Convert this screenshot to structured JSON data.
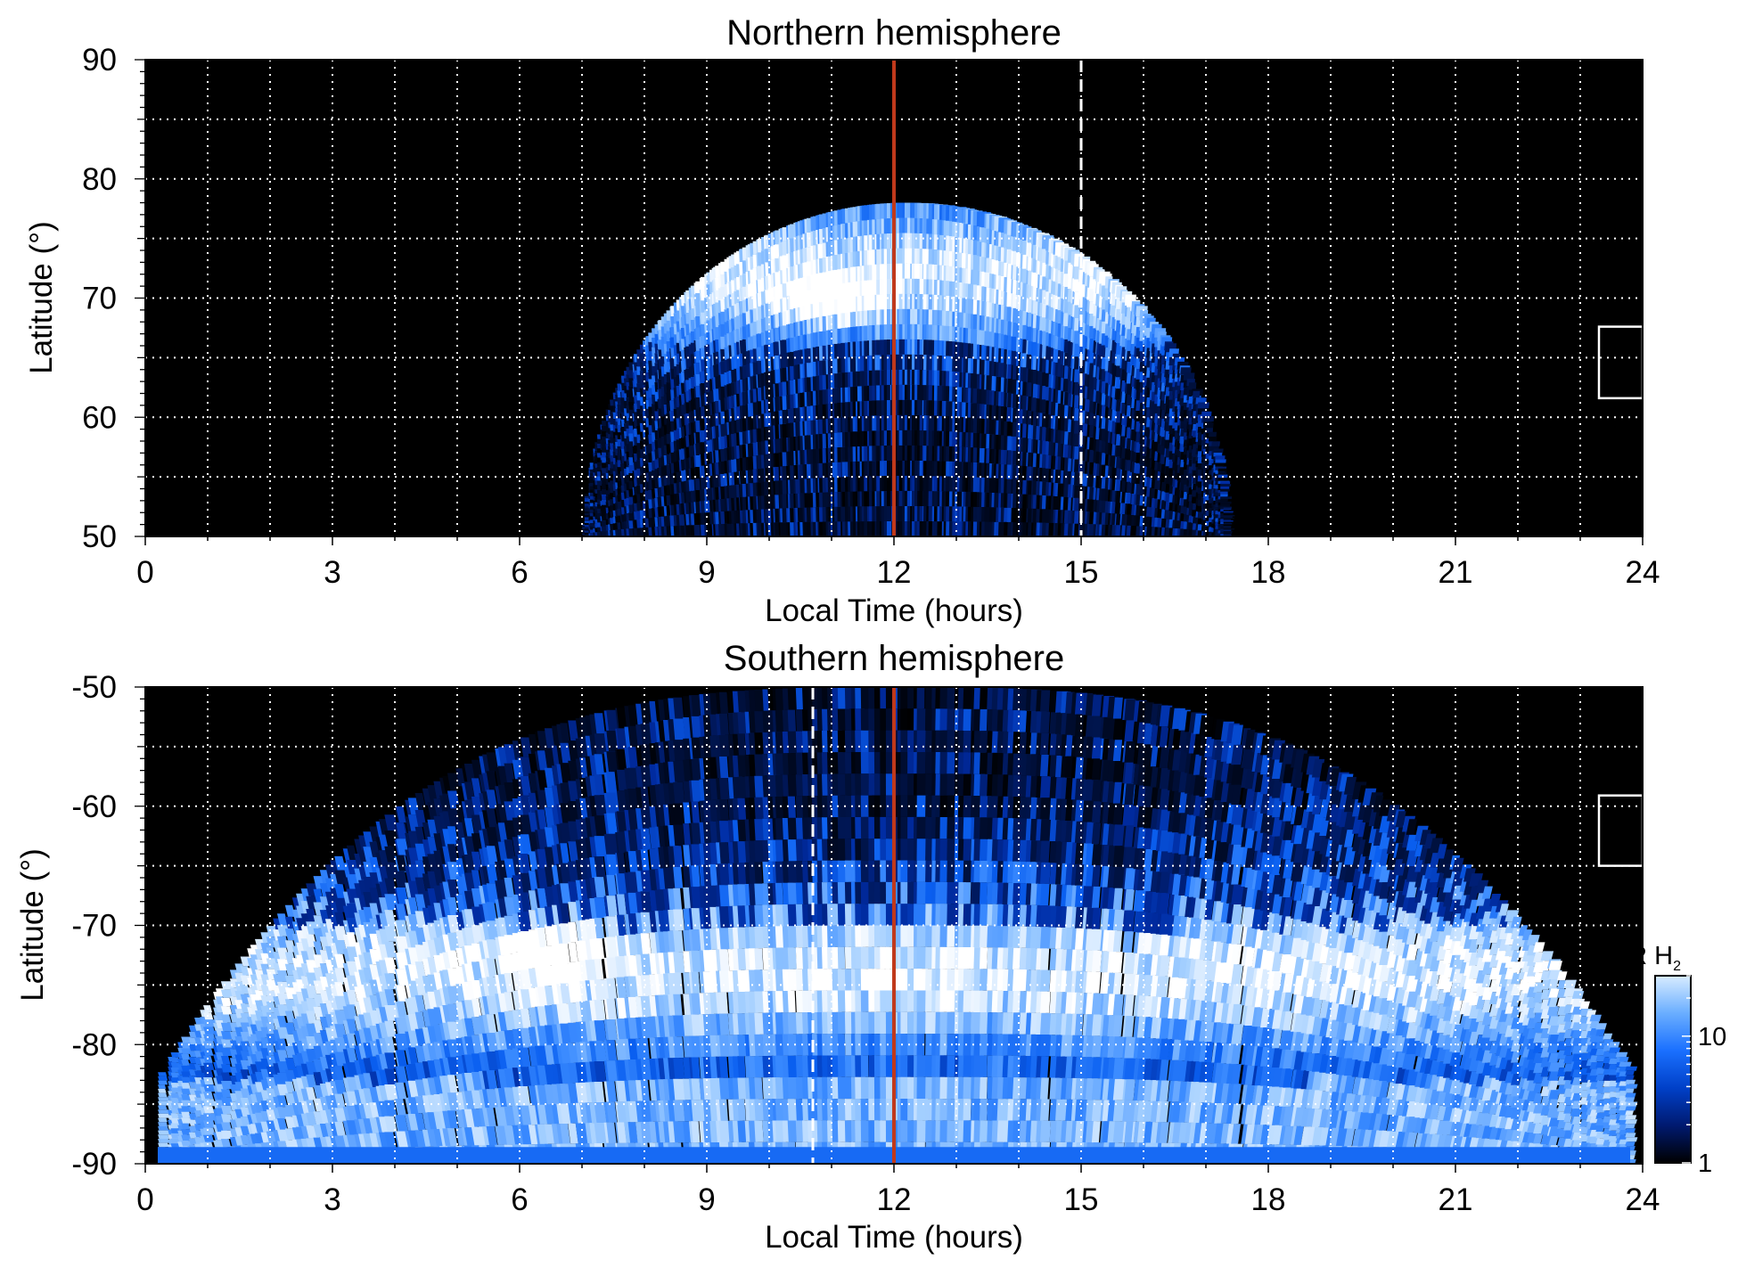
{
  "chart_data": [
    {
      "type": "heatmap",
      "title": "Northern hemisphere",
      "xlabel": "Local Time (hours)",
      "ylabel": "Latitude (°)",
      "xlim": [
        0,
        24
      ],
      "ylim": [
        50,
        90
      ],
      "x_ticks": [
        "0",
        "3",
        "6",
        "9",
        "12",
        "15",
        "18",
        "21",
        "24"
      ],
      "y_ticks": [
        "90",
        "80",
        "70",
        "60",
        "50"
      ],
      "grid": true,
      "background_color": "#000000",
      "colormap": [
        "#000000",
        "#002a9e",
        "#0a5ff0",
        "#3c8cff",
        "#9ccbff",
        "#ffffff"
      ],
      "coverage": {
        "lt_start": 7.0,
        "lt_end": 17.3,
        "lat_edge_noon": 78
      },
      "auroral_oval": {
        "lat_center": 72,
        "lat_width": 7,
        "brightest_lt": 11,
        "brightest_lat": 70
      },
      "noon_line": {
        "x": 12,
        "color": "#c0391b"
      },
      "dashed_line": {
        "x": 15,
        "color": "#ffffff"
      },
      "marker_box": {
        "x_range": [
          23.3,
          24
        ],
        "lat_range": [
          61.6,
          67.6
        ],
        "color": "#ffffff"
      }
    },
    {
      "type": "heatmap",
      "title": "Southern hemisphere",
      "xlabel": "Local Time (hours)",
      "ylabel": "Latitude (°)",
      "xlim": [
        0,
        24
      ],
      "ylim": [
        -90,
        -50
      ],
      "x_ticks": [
        "0",
        "3",
        "6",
        "9",
        "12",
        "15",
        "18",
        "21",
        "24"
      ],
      "y_ticks": [
        "-50",
        "-60",
        "-70",
        "-80",
        "-90"
      ],
      "grid": true,
      "background_color": "#000000",
      "colormap": [
        "#000000",
        "#002a9e",
        "#0a5ff0",
        "#3c8cff",
        "#9ccbff",
        "#ffffff"
      ],
      "coverage": {
        "lt_start": 0.2,
        "lt_end": 23.8,
        "lat_edge_midnight": -84
      },
      "auroral_oval": {
        "lat_center": -74,
        "lat_width": 8,
        "brightest_lt": 6.5,
        "brightest_lat": -72.5
      },
      "noon_line": {
        "x": 12,
        "color": "#c0391b"
      },
      "dashed_line": {
        "x": 10.7,
        "color": "#ffffff"
      },
      "marker_box": {
        "x_range": [
          23.3,
          24
        ],
        "lat_range": [
          -65,
          -59.1
        ],
        "color": "#ffffff"
      }
    }
  ],
  "colorbar": {
    "title_main": "kR H",
    "title_sub": "2",
    "scale": "log",
    "range": [
      1,
      30
    ],
    "tick_values": [
      1,
      10
    ],
    "tick_labels": [
      "1",
      "10"
    ],
    "gradient": [
      "#000000",
      "#001a70",
      "#0040c8",
      "#1a70ff",
      "#6aaeff",
      "#d8ecff"
    ]
  }
}
